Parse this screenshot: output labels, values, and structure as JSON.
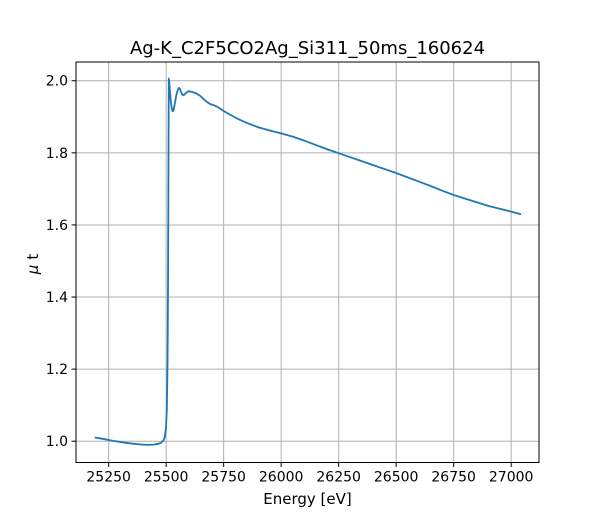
{
  "window": {
    "background_color": "#ffffff"
  },
  "chart_data": {
    "type": "line",
    "title": "Ag-K_C2F5CO2Ag_Si311_50ms_160624",
    "xlabel": "Energy [eV]",
    "ylabel": "μ t",
    "ylabel_mu": "μ",
    "ylabel_rest": "t",
    "xlim": [
      25108,
      27121
    ],
    "ylim": [
      0.941,
      2.052
    ],
    "x_ticks": [
      25250,
      25500,
      25750,
      26000,
      26250,
      26500,
      26750,
      27000
    ],
    "y_ticks": [
      1.0,
      1.2,
      1.4,
      1.6,
      1.8,
      2.0
    ],
    "grid": true,
    "legend": "none",
    "grid_color": "#b0b0b0",
    "line_color": "#1f77b4",
    "axes_edge_color": "#000000",
    "tick_label_color": "#000000",
    "series": [
      {
        "name": "mu_t_absorption",
        "x": [
          25192,
          25230,
          25270,
          25310,
          25350,
          25390,
          25420,
          25445,
          25465,
          25478,
          25488,
          25494,
          25499,
          25503,
          25506,
          25508,
          25509.5,
          25510.5,
          25511.5,
          25513,
          25516,
          25520,
          25524,
          25528,
          25532,
          25537,
          25543,
          25549,
          25555,
          25560,
          25565,
          25570,
          25576,
          25583,
          25590,
          25598,
          25607,
          25616,
          25626,
          25636,
          25648,
          25660,
          25672,
          25684,
          25696,
          25708,
          25722,
          25736,
          25750,
          25775,
          25800,
          25850,
          25900,
          25950,
          26000,
          26050,
          26100,
          26150,
          26200,
          26250,
          26300,
          26350,
          26400,
          26450,
          26500,
          26550,
          26600,
          26650,
          26700,
          26750,
          26800,
          26850,
          26900,
          26950,
          27000,
          27040
        ],
        "y": [
          1.01,
          1.006,
          1.001,
          0.997,
          0.9935,
          0.991,
          0.99,
          0.9905,
          0.9925,
          0.996,
          1.002,
          1.012,
          1.035,
          1.09,
          1.22,
          1.42,
          1.66,
          1.86,
          2.006,
          2.0,
          1.975,
          1.945,
          1.925,
          1.915,
          1.918,
          1.935,
          1.956,
          1.972,
          1.98,
          1.977,
          1.968,
          1.961,
          1.96,
          1.964,
          1.968,
          1.971,
          1.97,
          1.968,
          1.966,
          1.963,
          1.958,
          1.951,
          1.944,
          1.938,
          1.934,
          1.932,
          1.928,
          1.922,
          1.916,
          1.907,
          1.898,
          1.883,
          1.871,
          1.862,
          1.854,
          1.845,
          1.834,
          1.822,
          1.81,
          1.799,
          1.788,
          1.777,
          1.766,
          1.755,
          1.744,
          1.732,
          1.72,
          1.708,
          1.695,
          1.683,
          1.673,
          1.663,
          1.653,
          1.645,
          1.637,
          1.63
        ]
      }
    ]
  }
}
